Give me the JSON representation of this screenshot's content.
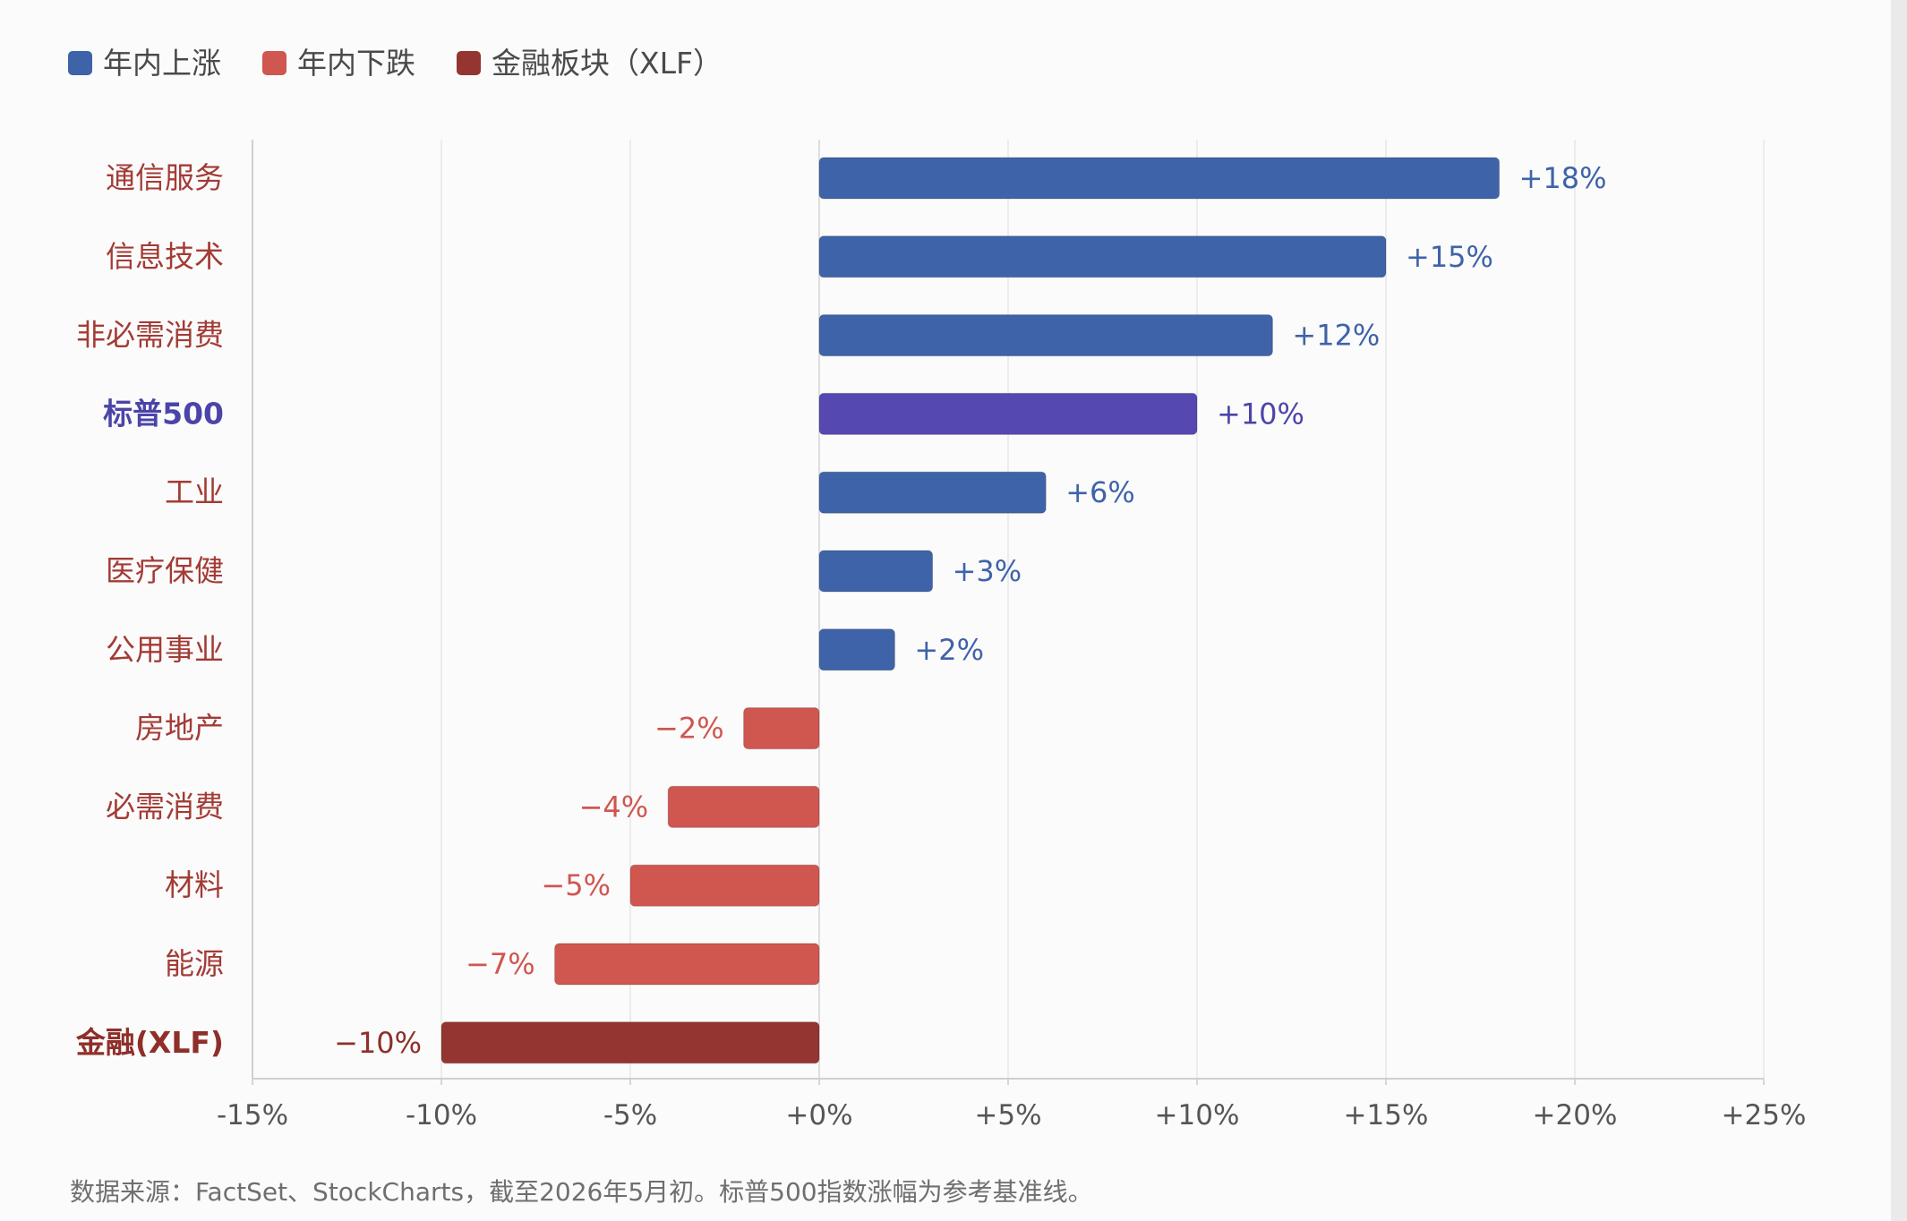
{
  "legend": [
    {
      "label": "年内上涨",
      "color": "#3f63a8"
    },
    {
      "label": "年内下跌",
      "color": "#d05650"
    },
    {
      "label": "金融板块（XLF）",
      "color": "#943531"
    }
  ],
  "chart_data": {
    "type": "bar",
    "orientation": "horizontal",
    "categories": [
      "通信服务",
      "信息技术",
      "非必需消费",
      "标普500",
      "工业",
      "医疗保健",
      "公用事业",
      "房地产",
      "必需消费",
      "材料",
      "能源",
      "金融(XLF)"
    ],
    "values": [
      18,
      15,
      12,
      10,
      6,
      3,
      2,
      -2,
      -4,
      -5,
      -7,
      -10
    ],
    "data_labels": [
      "+18%",
      "+15%",
      "+12%",
      "+10%",
      "+6%",
      "+3%",
      "+2%",
      "−2%",
      "−4%",
      "−5%",
      "−7%",
      "−10%"
    ],
    "bar_colors": [
      "#3f63a8",
      "#3f63a8",
      "#3f63a8",
      "#5548b0",
      "#3f63a8",
      "#3f63a8",
      "#3f63a8",
      "#d05650",
      "#d05650",
      "#d05650",
      "#d05650",
      "#943531"
    ],
    "category_colors": [
      "#a33b35",
      "#a33b35",
      "#a33b35",
      "#4b45a8",
      "#a33b35",
      "#a33b35",
      "#a33b35",
      "#a33b35",
      "#a33b35",
      "#a33b35",
      "#a33b35",
      "#8e2f2a"
    ],
    "label_colors": [
      "#3f63a8",
      "#3f63a8",
      "#3f63a8",
      "#4b45a8",
      "#3f63a8",
      "#3f63a8",
      "#3f63a8",
      "#d05650",
      "#d05650",
      "#d05650",
      "#d05650",
      "#8e2f2a"
    ],
    "bold_categories": [
      "标普500",
      "金融(XLF)"
    ],
    "xlim": [
      -15,
      25
    ],
    "xticks": [
      -15,
      -10,
      -5,
      0,
      5,
      10,
      15,
      20,
      25
    ],
    "xtick_labels": [
      "-15%",
      "-10%",
      "-5%",
      "+0%",
      "+5%",
      "+10%",
      "+15%",
      "+20%",
      "+25%"
    ],
    "grid": true,
    "legend_position": "top-left"
  },
  "source_note": "数据来源：FactSet、StockCharts，截至2026年5月初。标普500指数涨幅为参考基准线。"
}
